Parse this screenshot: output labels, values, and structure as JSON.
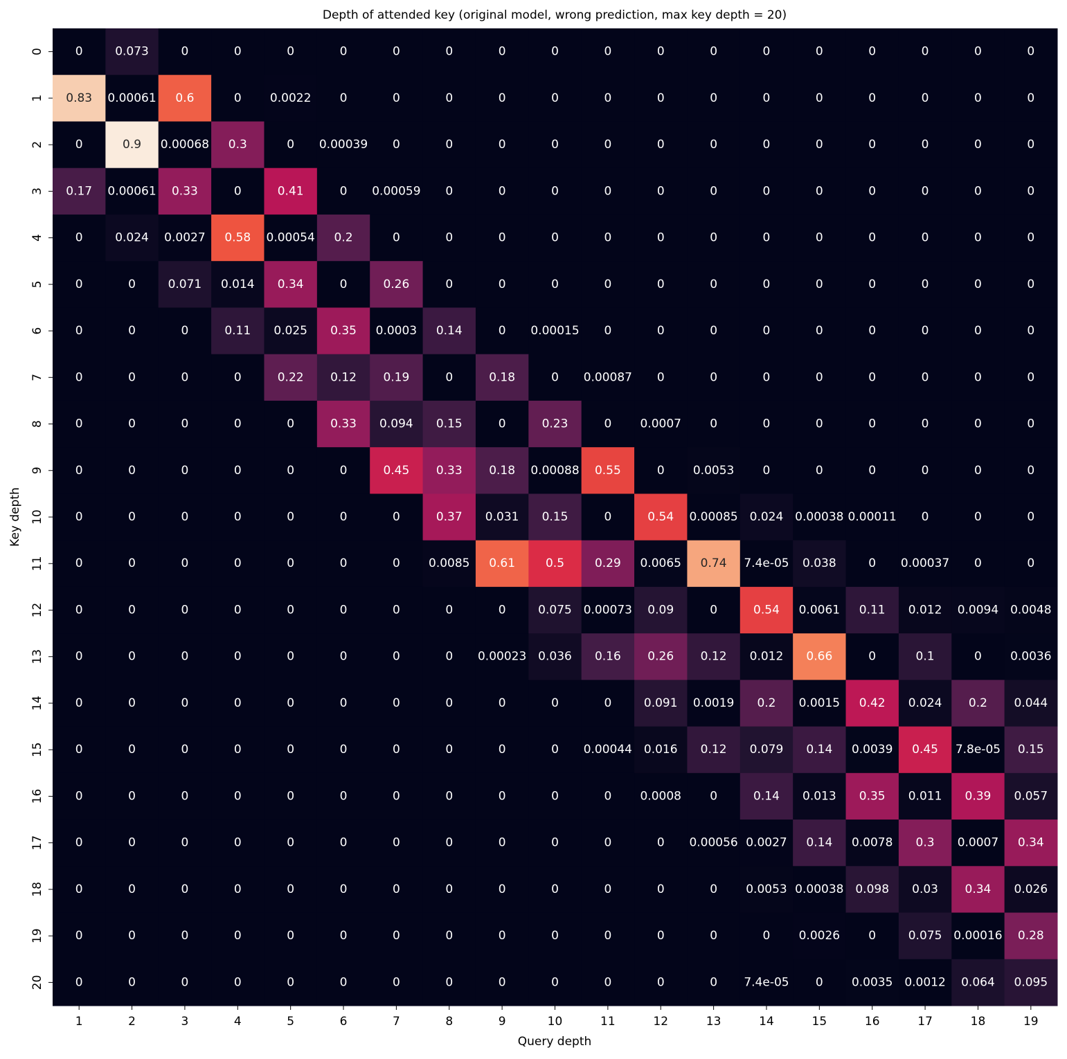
{
  "chart_data": {
    "type": "heatmap",
    "title": "Depth of attended key (original model, wrong prediction, max key depth = 20)",
    "x_label": "Query depth",
    "y_label": "Key depth",
    "x_categories": [
      1,
      2,
      3,
      4,
      5,
      6,
      7,
      8,
      9,
      10,
      11,
      12,
      13,
      14,
      15,
      16,
      17,
      18,
      19
    ],
    "y_categories": [
      0,
      1,
      2,
      3,
      4,
      5,
      6,
      7,
      8,
      9,
      10,
      11,
      12,
      13,
      14,
      15,
      16,
      17,
      18,
      19,
      20
    ],
    "colormap": "rocket",
    "values": [
      [
        0,
        0.073,
        0,
        0,
        0,
        0,
        0,
        0,
        0,
        0,
        0,
        0,
        0,
        0,
        0,
        0,
        0,
        0,
        0
      ],
      [
        0.83,
        0.00061,
        0.6,
        0,
        0.0022,
        0,
        0,
        0,
        0,
        0,
        0,
        0,
        0,
        0,
        0,
        0,
        0,
        0,
        0
      ],
      [
        0,
        0.9,
        0.00068,
        0.3,
        0,
        0.00039,
        0,
        0,
        0,
        0,
        0,
        0,
        0,
        0,
        0,
        0,
        0,
        0,
        0
      ],
      [
        0.17,
        0.00061,
        0.33,
        0,
        0.41,
        0,
        0.00059,
        0,
        0,
        0,
        0,
        0,
        0,
        0,
        0,
        0,
        0,
        0,
        0
      ],
      [
        0,
        0.024,
        0.0027,
        0.58,
        0.00054,
        0.2,
        0,
        0,
        0,
        0,
        0,
        0,
        0,
        0,
        0,
        0,
        0,
        0,
        0
      ],
      [
        0,
        0,
        0.071,
        0.014,
        0.34,
        0,
        0.26,
        0,
        0,
        0,
        0,
        0,
        0,
        0,
        0,
        0,
        0,
        0,
        0
      ],
      [
        0,
        0,
        0,
        0.11,
        0.025,
        0.35,
        0.0003,
        0.14,
        0,
        0.00015,
        0,
        0,
        0,
        0,
        0,
        0,
        0,
        0,
        0
      ],
      [
        0,
        0,
        0,
        0,
        0.22,
        0.12,
        0.19,
        0,
        0.18,
        0,
        0.00087,
        0,
        0,
        0,
        0,
        0,
        0,
        0,
        0
      ],
      [
        0,
        0,
        0,
        0,
        0,
        0.33,
        0.094,
        0.15,
        0,
        0.23,
        0,
        0.0007,
        0,
        0,
        0,
        0,
        0,
        0,
        0
      ],
      [
        0,
        0,
        0,
        0,
        0,
        0,
        0.45,
        0.33,
        0.18,
        0.00088,
        0.55,
        0,
        0.0053,
        0,
        0,
        0,
        0,
        0,
        0
      ],
      [
        0,
        0,
        0,
        0,
        0,
        0,
        0,
        0.37,
        0.031,
        0.15,
        0,
        0.54,
        0.00085,
        0.024,
        0.00038,
        0.00011,
        0,
        0,
        0
      ],
      [
        0,
        0,
        0,
        0,
        0,
        0,
        0,
        0.0085,
        0.61,
        0.5,
        0.29,
        0.0065,
        0.74,
        7.4e-05,
        0.038,
        0,
        0.00037,
        0,
        0
      ],
      [
        0,
        0,
        0,
        0,
        0,
        0,
        0,
        0,
        0,
        0.075,
        0.00073,
        0.09,
        0,
        0.54,
        0.0061,
        0.11,
        0.012,
        0.0094,
        0.0048
      ],
      [
        0,
        0,
        0,
        0,
        0,
        0,
        0,
        0,
        0.00023,
        0.036,
        0.16,
        0.26,
        0.12,
        0.012,
        0.66,
        0,
        0.1,
        0,
        0.0036
      ],
      [
        0,
        0,
        0,
        0,
        0,
        0,
        0,
        0,
        0,
        0,
        0,
        0.091,
        0.0019,
        0.2,
        0.0015,
        0.42,
        0.024,
        0.2,
        0.044
      ],
      [
        0,
        0,
        0,
        0,
        0,
        0,
        0,
        0,
        0,
        0,
        0.00044,
        0.016,
        0.12,
        0.079,
        0.14,
        0.0039,
        0.45,
        7.8e-05,
        0.15
      ],
      [
        0,
        0,
        0,
        0,
        0,
        0,
        0,
        0,
        0,
        0,
        0,
        0.0008,
        0,
        0.14,
        0.013,
        0.35,
        0.011,
        0.39,
        0.057
      ],
      [
        0,
        0,
        0,
        0,
        0,
        0,
        0,
        0,
        0,
        0,
        0,
        0,
        0.00056,
        0.0027,
        0.14,
        0.0078,
        0.3,
        0.0007,
        0.34
      ],
      [
        0,
        0,
        0,
        0,
        0,
        0,
        0,
        0,
        0,
        0,
        0,
        0,
        0,
        0.0053,
        0.00038,
        0.098,
        0.03,
        0.34,
        0.026
      ],
      [
        0,
        0,
        0,
        0,
        0,
        0,
        0,
        0,
        0,
        0,
        0,
        0,
        0,
        0,
        0.0026,
        0,
        0.075,
        0.00016,
        0.28
      ],
      [
        0,
        0,
        0,
        0,
        0,
        0,
        0,
        0,
        0,
        0,
        0,
        0,
        0,
        7.4e-05,
        0,
        0.0035,
        0.0012,
        0.064,
        0.095
      ]
    ],
    "value_labels": [
      [
        "0",
        "0.073",
        "0",
        "0",
        "0",
        "0",
        "0",
        "0",
        "0",
        "0",
        "0",
        "0",
        "0",
        "0",
        "0",
        "0",
        "0",
        "0",
        "0"
      ],
      [
        "0.83",
        "0.00061",
        "0.6",
        "0",
        "0.0022",
        "0",
        "0",
        "0",
        "0",
        "0",
        "0",
        "0",
        "0",
        "0",
        "0",
        "0",
        "0",
        "0",
        "0"
      ],
      [
        "0",
        "0.9",
        "0.00068",
        "0.3",
        "0",
        "0.00039",
        "0",
        "0",
        "0",
        "0",
        "0",
        "0",
        "0",
        "0",
        "0",
        "0",
        "0",
        "0",
        "0"
      ],
      [
        "0.17",
        "0.00061",
        "0.33",
        "0",
        "0.41",
        "0",
        "0.00059",
        "0",
        "0",
        "0",
        "0",
        "0",
        "0",
        "0",
        "0",
        "0",
        "0",
        "0",
        "0"
      ],
      [
        "0",
        "0.024",
        "0.0027",
        "0.58",
        "0.00054",
        "0.2",
        "0",
        "0",
        "0",
        "0",
        "0",
        "0",
        "0",
        "0",
        "0",
        "0",
        "0",
        "0",
        "0"
      ],
      [
        "0",
        "0",
        "0.071",
        "0.014",
        "0.34",
        "0",
        "0.26",
        "0",
        "0",
        "0",
        "0",
        "0",
        "0",
        "0",
        "0",
        "0",
        "0",
        "0",
        "0"
      ],
      [
        "0",
        "0",
        "0",
        "0.11",
        "0.025",
        "0.35",
        "0.0003",
        "0.14",
        "0",
        "0.00015",
        "0",
        "0",
        "0",
        "0",
        "0",
        "0",
        "0",
        "0",
        "0"
      ],
      [
        "0",
        "0",
        "0",
        "0",
        "0.22",
        "0.12",
        "0.19",
        "0",
        "0.18",
        "0",
        "0.00087",
        "0",
        "0",
        "0",
        "0",
        "0",
        "0",
        "0",
        "0"
      ],
      [
        "0",
        "0",
        "0",
        "0",
        "0",
        "0.33",
        "0.094",
        "0.15",
        "0",
        "0.23",
        "0",
        "0.0007",
        "0",
        "0",
        "0",
        "0",
        "0",
        "0",
        "0"
      ],
      [
        "0",
        "0",
        "0",
        "0",
        "0",
        "0",
        "0.45",
        "0.33",
        "0.18",
        "0.00088",
        "0.55",
        "0",
        "0.0053",
        "0",
        "0",
        "0",
        "0",
        "0",
        "0"
      ],
      [
        "0",
        "0",
        "0",
        "0",
        "0",
        "0",
        "0",
        "0.37",
        "0.031",
        "0.15",
        "0",
        "0.54",
        "0.00085",
        "0.024",
        "0.00038",
        "0.00011",
        "0",
        "0",
        "0"
      ],
      [
        "0",
        "0",
        "0",
        "0",
        "0",
        "0",
        "0",
        "0.0085",
        "0.61",
        "0.5",
        "0.29",
        "0.0065",
        "0.74",
        "7.4e-05",
        "0.038",
        "0",
        "0.00037",
        "0",
        "0"
      ],
      [
        "0",
        "0",
        "0",
        "0",
        "0",
        "0",
        "0",
        "0",
        "0",
        "0.075",
        "0.00073",
        "0.09",
        "0",
        "0.54",
        "0.0061",
        "0.11",
        "0.012",
        "0.0094",
        "0.0048"
      ],
      [
        "0",
        "0",
        "0",
        "0",
        "0",
        "0",
        "0",
        "0",
        "0.00023",
        "0.036",
        "0.16",
        "0.26",
        "0.12",
        "0.012",
        "0.66",
        "0",
        "0.1",
        "0",
        "0.0036"
      ],
      [
        "0",
        "0",
        "0",
        "0",
        "0",
        "0",
        "0",
        "0",
        "0",
        "0",
        "0",
        "0.091",
        "0.0019",
        "0.2",
        "0.0015",
        "0.42",
        "0.024",
        "0.2",
        "0.044"
      ],
      [
        "0",
        "0",
        "0",
        "0",
        "0",
        "0",
        "0",
        "0",
        "0",
        "0",
        "0.00044",
        "0.016",
        "0.12",
        "0.079",
        "0.14",
        "0.0039",
        "0.45",
        "7.8e-05",
        "0.15"
      ],
      [
        "0",
        "0",
        "0",
        "0",
        "0",
        "0",
        "0",
        "0",
        "0",
        "0",
        "0",
        "0.0008",
        "0",
        "0.14",
        "0.013",
        "0.35",
        "0.011",
        "0.39",
        "0.057"
      ],
      [
        "0",
        "0",
        "0",
        "0",
        "0",
        "0",
        "0",
        "0",
        "0",
        "0",
        "0",
        "0",
        "0.00056",
        "0.0027",
        "0.14",
        "0.0078",
        "0.3",
        "0.0007",
        "0.34"
      ],
      [
        "0",
        "0",
        "0",
        "0",
        "0",
        "0",
        "0",
        "0",
        "0",
        "0",
        "0",
        "0",
        "0",
        "0.0053",
        "0.00038",
        "0.098",
        "0.03",
        "0.34",
        "0.026"
      ],
      [
        "0",
        "0",
        "0",
        "0",
        "0",
        "0",
        "0",
        "0",
        "0",
        "0",
        "0",
        "0",
        "0",
        "0",
        "0.0026",
        "0",
        "0.075",
        "0.00016",
        "0.28"
      ],
      [
        "0",
        "0",
        "0",
        "0",
        "0",
        "0",
        "0",
        "0",
        "0",
        "0",
        "0",
        "0",
        "0",
        "7.4e-05",
        "0",
        "0.0035",
        "0.0012",
        "0.064",
        "0.095"
      ]
    ]
  }
}
